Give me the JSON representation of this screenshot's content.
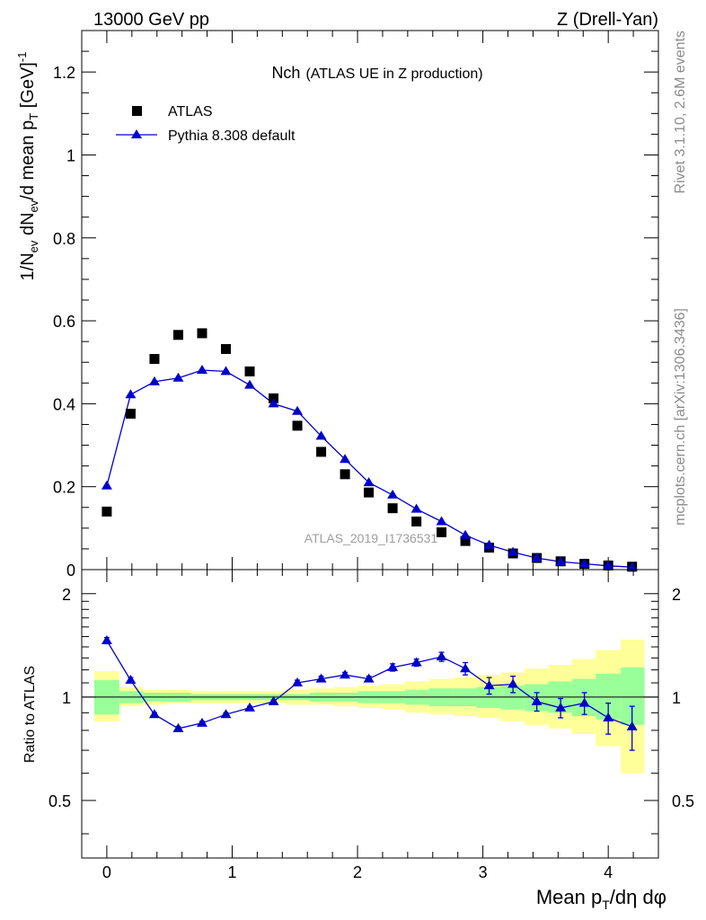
{
  "header": {
    "left": "13000 GeV pp",
    "right": "Z (Drell-Yan)"
  },
  "side": {
    "rivet": "Rivet 3.1.10,  2.6M events",
    "mcplots": "mcplots.cern.ch [arXiv:1306.3436]"
  },
  "main_plot": {
    "title_main": "Nch",
    "title_sub": "(ATLAS UE in Z production)",
    "watermark": "ATLAS_2019_I1736531",
    "legend": {
      "atlas": "ATLAS",
      "pythia": "Pythia 8.308 default"
    },
    "ylabel_parts": [
      "1/N",
      "ev",
      " dN",
      "ev",
      "/d mean p",
      "T",
      " [GeV]",
      "-1"
    ],
    "y_ticks": [
      "0",
      "0.2",
      "0.4",
      "0.6",
      "0.8",
      "1",
      "1.2"
    ]
  },
  "ratio_plot": {
    "ylabel": "Ratio to ATLAS",
    "y_ticks": [
      "0.5",
      "1",
      "2"
    ]
  },
  "xaxis": {
    "label_parts": [
      "Mean p",
      "T",
      "/d",
      "η",
      " d",
      "φ"
    ],
    "ticks": [
      "0",
      "1",
      "2",
      "3",
      "4"
    ]
  },
  "colors": {
    "atlas": "#000000",
    "pythia": "#0000cc",
    "band_inner": "#99ff99",
    "band_outer": "#ffff99",
    "watermark": "#9e9e9e"
  },
  "chart_data": [
    {
      "type": "scatter",
      "panel": "main",
      "x_range": [
        -0.2,
        4.4
      ],
      "ylim": [
        0,
        1.3
      ],
      "series": [
        {
          "name": "ATLAS",
          "marker": "square",
          "x": [
            0.0,
            0.19,
            0.38,
            0.57,
            0.76,
            0.95,
            1.14,
            1.33,
            1.52,
            1.71,
            1.9,
            2.09,
            2.28,
            2.47,
            2.67,
            2.86,
            3.05,
            3.24,
            3.43,
            3.62,
            3.81,
            4.0,
            4.19
          ],
          "y": [
            0.14,
            0.376,
            0.508,
            0.566,
            0.57,
            0.532,
            0.478,
            0.413,
            0.347,
            0.284,
            0.23,
            0.186,
            0.148,
            0.116,
            0.09,
            0.069,
            0.053,
            0.039,
            0.028,
            0.02,
            0.014,
            0.01,
            0.007
          ]
        },
        {
          "name": "Pythia 8.308 default",
          "marker": "triangle",
          "x": [
            0.0,
            0.19,
            0.38,
            0.57,
            0.76,
            0.95,
            1.14,
            1.33,
            1.52,
            1.71,
            1.9,
            2.09,
            2.28,
            2.47,
            2.67,
            2.86,
            3.05,
            3.24,
            3.43,
            3.62,
            3.81,
            4.0,
            4.19
          ],
          "y": [
            0.202,
            0.422,
            0.453,
            0.462,
            0.481,
            0.478,
            0.445,
            0.4,
            0.382,
            0.322,
            0.266,
            0.21,
            0.18,
            0.146,
            0.116,
            0.083,
            0.059,
            0.042,
            0.028,
            0.019,
            0.014,
            0.009,
            0.006
          ]
        }
      ]
    },
    {
      "type": "line",
      "panel": "ratio",
      "scale": "log",
      "x_range": [
        -0.2,
        4.4
      ],
      "ylim": [
        0.34,
        2.35
      ],
      "reference": 1.0,
      "bands": {
        "x_edges": [
          -0.1,
          0.1,
          0.29,
          0.48,
          0.67,
          0.86,
          1.05,
          1.24,
          1.43,
          1.62,
          1.81,
          2.0,
          2.19,
          2.38,
          2.57,
          2.76,
          2.95,
          3.14,
          3.33,
          3.52,
          3.71,
          3.9,
          4.1,
          4.29
        ],
        "inner_lo": [
          0.89,
          0.96,
          0.97,
          0.97,
          0.98,
          0.98,
          0.98,
          0.98,
          0.98,
          0.97,
          0.97,
          0.96,
          0.96,
          0.95,
          0.94,
          0.94,
          0.93,
          0.92,
          0.91,
          0.9,
          0.88,
          0.86,
          0.83
        ],
        "inner_hi": [
          1.12,
          1.04,
          1.03,
          1.03,
          1.02,
          1.02,
          1.02,
          1.02,
          1.02,
          1.03,
          1.03,
          1.04,
          1.04,
          1.05,
          1.06,
          1.06,
          1.07,
          1.08,
          1.09,
          1.11,
          1.13,
          1.17,
          1.22
        ],
        "outer_lo": [
          0.85,
          0.94,
          0.95,
          0.96,
          0.96,
          0.96,
          0.96,
          0.96,
          0.95,
          0.95,
          0.94,
          0.93,
          0.92,
          0.9,
          0.89,
          0.88,
          0.87,
          0.85,
          0.83,
          0.81,
          0.78,
          0.72,
          0.6
        ],
        "outer_hi": [
          1.19,
          1.07,
          1.05,
          1.05,
          1.04,
          1.04,
          1.04,
          1.04,
          1.05,
          1.06,
          1.07,
          1.08,
          1.09,
          1.11,
          1.13,
          1.14,
          1.16,
          1.18,
          1.21,
          1.24,
          1.29,
          1.37,
          1.47
        ]
      },
      "series": [
        {
          "name": "Pythia 8.308 default",
          "marker": "triangle",
          "x": [
            0.0,
            0.19,
            0.38,
            0.57,
            0.76,
            0.95,
            1.14,
            1.33,
            1.52,
            1.71,
            1.9,
            2.09,
            2.28,
            2.47,
            2.67,
            2.86,
            3.05,
            3.24,
            3.43,
            3.62,
            3.81,
            4.0,
            4.19
          ],
          "y": [
            1.46,
            1.12,
            0.89,
            0.81,
            0.84,
            0.89,
            0.93,
            0.97,
            1.1,
            1.13,
            1.16,
            1.13,
            1.22,
            1.26,
            1.31,
            1.21,
            1.08,
            1.09,
            0.97,
            0.93,
            0.96,
            0.87,
            0.82
          ],
          "err_lo": [
            0.03,
            0.02,
            0.01,
            0.01,
            0.01,
            0.01,
            0.01,
            0.01,
            0.02,
            0.02,
            0.02,
            0.02,
            0.03,
            0.03,
            0.04,
            0.05,
            0.06,
            0.06,
            0.06,
            0.06,
            0.07,
            0.09,
            0.12
          ],
          "err_hi": [
            0.03,
            0.02,
            0.01,
            0.01,
            0.01,
            0.01,
            0.01,
            0.01,
            0.02,
            0.02,
            0.02,
            0.02,
            0.03,
            0.03,
            0.04,
            0.05,
            0.06,
            0.06,
            0.06,
            0.06,
            0.07,
            0.09,
            0.12
          ]
        }
      ]
    }
  ]
}
